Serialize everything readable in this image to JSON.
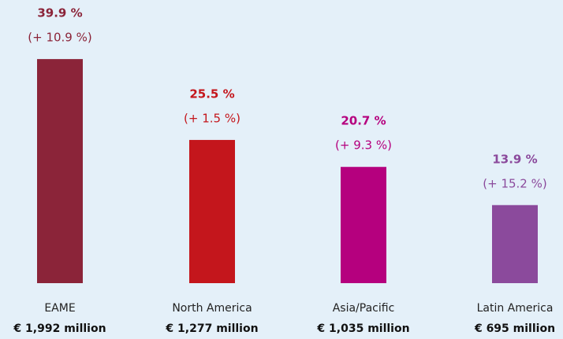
{
  "chart_data": {
    "type": "bar",
    "categories": [
      "EAME",
      "North America",
      "Asia/Pacific",
      "Latin America"
    ],
    "values": [
      39.9,
      25.5,
      20.7,
      13.9
    ],
    "value_labels": [
      "39.9 %",
      "25.5 %",
      "20.7 %",
      "13.9 %"
    ],
    "changes": [
      "(+ 10.9 %)",
      "(+ 1.5 %)",
      "(+ 9.3 %)",
      "(+ 15.2 %)"
    ],
    "amounts": [
      "€ 1,992 million",
      "€ 1,277 million",
      "€ 1,035 million",
      "€ 695 million"
    ],
    "colors": [
      "#8b2439",
      "#c4161c",
      "#b5007e",
      "#8b4a9c"
    ]
  }
}
